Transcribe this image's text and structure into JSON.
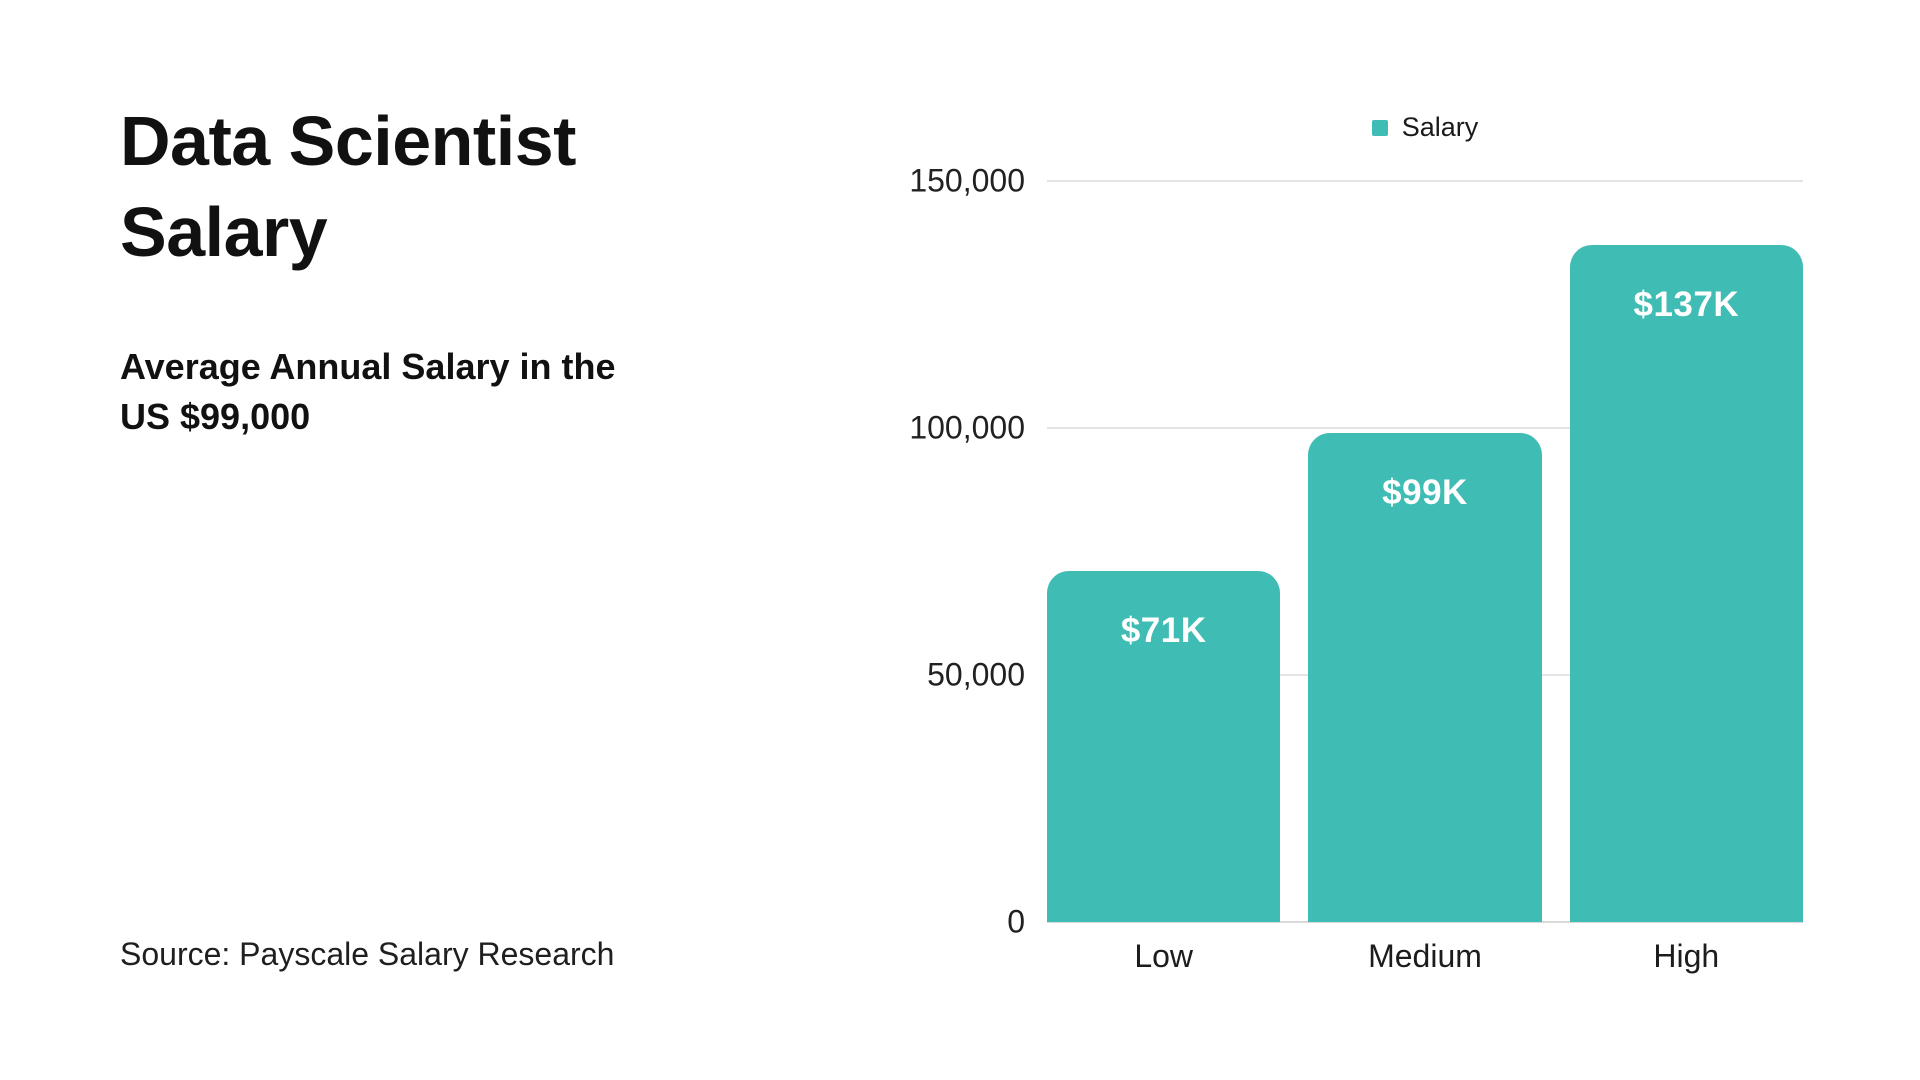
{
  "left_panel": {
    "title": "Data Scientist Salary",
    "subtitle": "Average Annual Salary in the US $99,000",
    "source": "Source: Payscale Salary Research"
  },
  "chart_data": {
    "type": "bar",
    "categories": [
      "Low",
      "Medium",
      "High"
    ],
    "series": [
      {
        "name": "Salary",
        "values": [
          71000,
          99000,
          137000
        ]
      }
    ],
    "bar_labels": [
      "$71K",
      "$99K",
      "$137K"
    ],
    "legend": [
      {
        "label": "Salary",
        "color": "#3FBCB3"
      }
    ],
    "legend_position": "top-center",
    "ylim": [
      0,
      150000
    ],
    "yticks": [
      0,
      50000,
      100000,
      150000
    ],
    "grid": true,
    "colors": {
      "bar": "#3FBCB3",
      "gridline": "#E4E4E4",
      "zero_line": "#D9D9D9",
      "bar_label_text": "#FFFFFF",
      "text": "#111111"
    }
  }
}
